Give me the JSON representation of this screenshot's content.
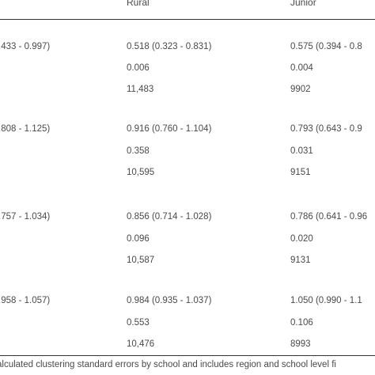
{
  "table": {
    "headers": {
      "rural": "Rural",
      "junior": "Junior"
    },
    "groups": [
      {
        "col0": ".433 - 0.997)",
        "rural": [
          "0.518 (0.323 - 0.831)",
          "0.006",
          "11,483"
        ],
        "junior": [
          "0.575 (0.394 - 0.8",
          "0.004",
          "9902"
        ]
      },
      {
        "col0": ".808 - 1.125)",
        "rural": [
          "0.916 (0.760 - 1.104)",
          "0.358",
          "10,595"
        ],
        "junior": [
          "0.793 (0.643 - 0.9",
          "0.031",
          "9151"
        ]
      },
      {
        "col0": ".757 - 1.034)",
        "rural": [
          "0.856 (0.714 - 1.028)",
          "0.096",
          "10,587"
        ],
        "junior": [
          "0.786 (0.641 - 0.96",
          "0.020",
          "9131"
        ]
      },
      {
        "col0": ".958 - 1.057)",
        "rural": [
          "0.984 (0.935 - 1.037)",
          "0.553",
          "10,476"
        ],
        "junior": [
          "1.050 (0.990 - 1.1",
          "0.106",
          "8993"
        ]
      }
    ],
    "footnote": "alculated clustering standard errors by school and includes region and school level fi"
  }
}
